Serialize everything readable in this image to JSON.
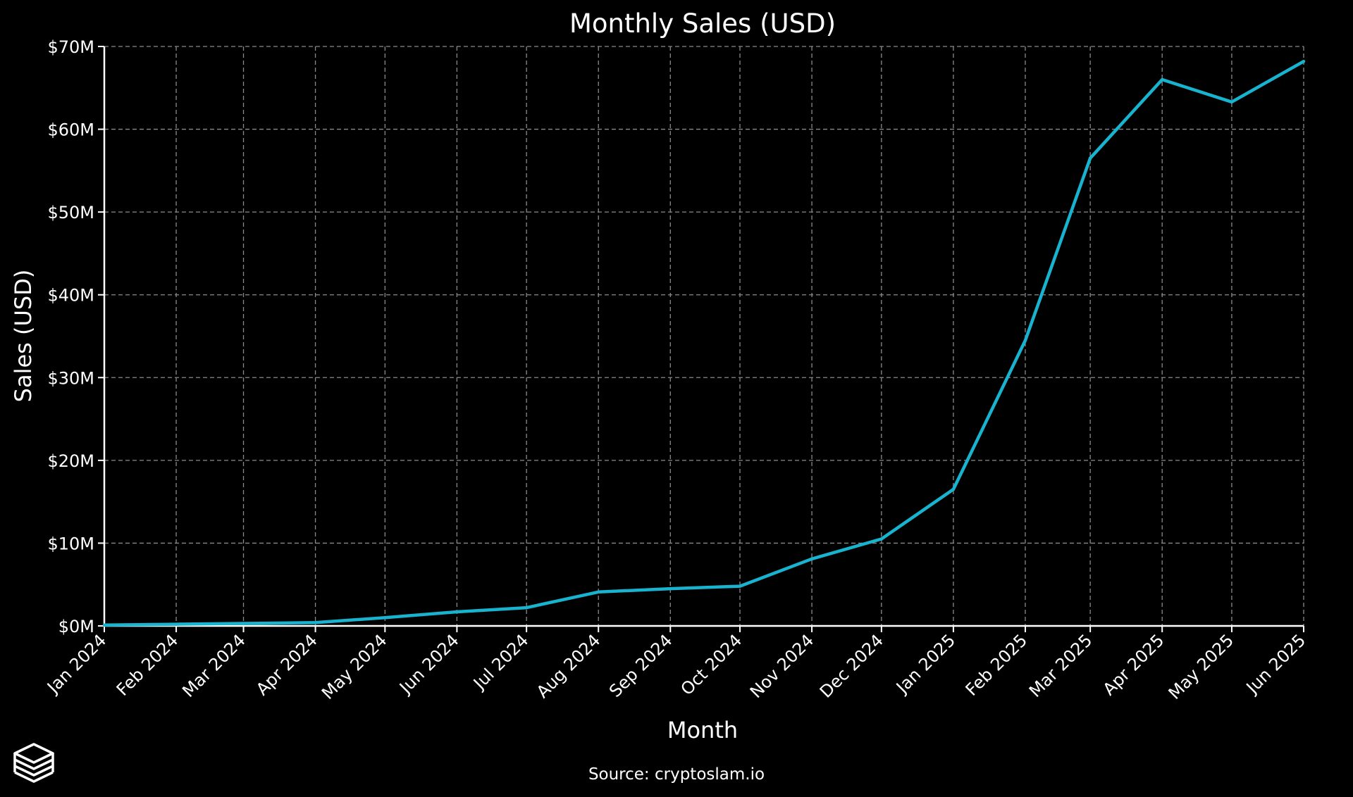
{
  "chart_data": {
    "type": "line",
    "title": "Monthly Sales (USD)",
    "xlabel": "Month",
    "ylabel": "Sales (USD)",
    "source": "Source: cryptoslam.io",
    "x": [
      "Jan 2024",
      "Feb 2024",
      "Mar 2024",
      "Apr 2024",
      "May 2024",
      "Jun 2024",
      "Jul 2024",
      "Aug 2024",
      "Sep 2024",
      "Oct 2024",
      "Nov 2024",
      "Dec 2024",
      "Jan 2025",
      "Feb 2025",
      "Mar 2025",
      "Apr 2025",
      "May 2025",
      "Jun 2025"
    ],
    "x_dates": [
      "2024-01-01",
      "2024-02-01",
      "2024-03-01",
      "2024-04-01",
      "2024-05-01",
      "2024-06-01",
      "2024-07-01",
      "2024-08-01",
      "2024-09-01",
      "2024-10-01",
      "2024-11-01",
      "2024-12-01",
      "2025-01-01",
      "2025-02-01",
      "2025-03-01",
      "2025-04-01",
      "2025-05-01",
      "2025-06-01"
    ],
    "series": [
      {
        "values": [
          0.1,
          0.2,
          0.3,
          0.4,
          1.0,
          1.7,
          2.2,
          4.1,
          4.5,
          4.8,
          8.1,
          10.5,
          16.5,
          34.5,
          56.5,
          66.0,
          63.3,
          68.2
        ],
        "color": "#17b3cf"
      }
    ],
    "yticks": [
      0,
      10,
      20,
      30,
      40,
      50,
      60,
      70
    ],
    "ytick_labels": [
      "$0M",
      "$10M",
      "$20M",
      "$30M",
      "$40M",
      "$50M",
      "$60M",
      "$70M"
    ],
    "ylim": [
      0,
      70
    ],
    "grid": true,
    "legend": false
  },
  "colors": {
    "background": "#000000",
    "text": "#ffffff",
    "line": "#17b3cf",
    "grid": "#8a8a8a",
    "axis": "#ffffff"
  },
  "icons": {
    "logo": "stacked-layers-logo-icon"
  }
}
